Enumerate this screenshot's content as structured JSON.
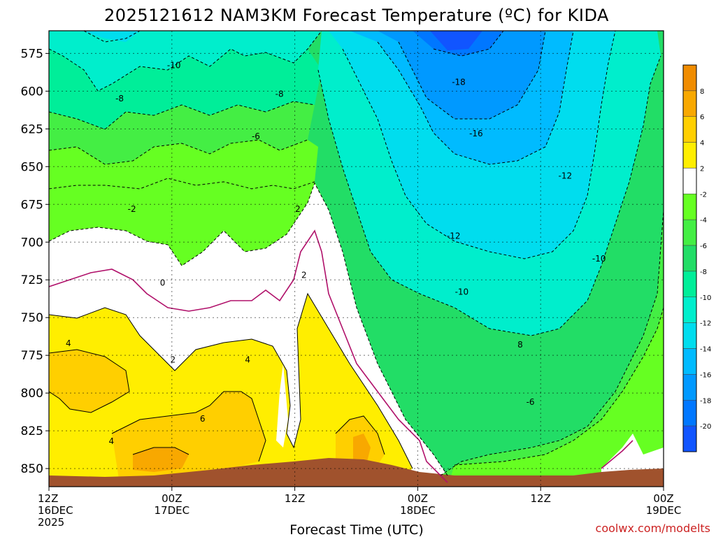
{
  "chart_data": {
    "type": "heatmap",
    "title": "2025121612 NAM3KM Forecast Temperature (ºC) for KIDA",
    "xlabel": "Forecast Time (UTC)",
    "ylabel": "",
    "credit": "coolwx.com/modelts",
    "y_axis": {
      "ticks": [
        575,
        600,
        625,
        650,
        675,
        700,
        725,
        750,
        775,
        800,
        825,
        850
      ],
      "range": [
        560,
        862
      ],
      "inverted": true
    },
    "x_axis": {
      "range": [
        0,
        60
      ],
      "ticks": [
        {
          "h": 0,
          "lines": [
            "12Z",
            "16DEC",
            "2025"
          ]
        },
        {
          "h": 12,
          "lines": [
            "00Z",
            "17DEC"
          ]
        },
        {
          "h": 24,
          "lines": [
            "12Z"
          ]
        },
        {
          "h": 36,
          "lines": [
            "00Z",
            "18DEC"
          ]
        },
        {
          "h": 48,
          "lines": [
            "12Z"
          ]
        },
        {
          "h": 60,
          "lines": [
            "00Z",
            "19DEC"
          ]
        }
      ]
    },
    "colorbar": {
      "levels": [
        {
          "label": "8",
          "color": "#f08c00"
        },
        {
          "label": "6",
          "color": "#f8a800"
        },
        {
          "label": "4",
          "color": "#ffcf00"
        },
        {
          "label": "2",
          "color": "#ffee00"
        },
        {
          "label": "-2",
          "color": "#ffffff"
        },
        {
          "label": "-4",
          "color": "#66ff22"
        },
        {
          "label": "-6",
          "color": "#44ee44"
        },
        {
          "label": "-8",
          "color": "#22dd66"
        },
        {
          "label": "-10",
          "color": "#00ee99"
        },
        {
          "label": "-12",
          "color": "#00eecc"
        },
        {
          "label": "-14",
          "color": "#00ddee"
        },
        {
          "label": "-16",
          "color": "#00bbff"
        },
        {
          "label": "-18",
          "color": "#0099ff"
        },
        {
          "label": "-20",
          "color": "#0077ff"
        },
        {
          "label": "",
          "color": "#1155ff"
        }
      ]
    },
    "contour_labels": [
      {
        "text": "-10",
        "h": 12.2,
        "p": 583
      },
      {
        "text": "-8",
        "h": 6.9,
        "p": 605
      },
      {
        "text": "-8",
        "h": 22.5,
        "p": 602
      },
      {
        "text": "-6",
        "h": 20.2,
        "p": 630
      },
      {
        "text": "-2",
        "h": 8.1,
        "p": 678
      },
      {
        "text": "2",
        "h": 24.3,
        "p": 678
      },
      {
        "text": "0",
        "h": 11.1,
        "p": 727
      },
      {
        "text": "2",
        "h": 24.9,
        "p": 722
      },
      {
        "text": "4",
        "h": 1.9,
        "p": 767
      },
      {
        "text": "2",
        "h": 12.1,
        "p": 778
      },
      {
        "text": "4",
        "h": 19.4,
        "p": 778
      },
      {
        "text": "6",
        "h": 15.0,
        "p": 817
      },
      {
        "text": "4",
        "h": 6.1,
        "p": 832
      },
      {
        "text": "-18",
        "h": 40.0,
        "p": 594
      },
      {
        "text": "-16",
        "h": 41.7,
        "p": 628
      },
      {
        "text": "-12",
        "h": 50.4,
        "p": 656
      },
      {
        "text": "-12",
        "h": 39.5,
        "p": 696
      },
      {
        "text": "-10",
        "h": 53.7,
        "p": 711
      },
      {
        "text": "-10",
        "h": 40.3,
        "p": 733
      },
      {
        "text": "8",
        "h": 46.0,
        "p": 768
      },
      {
        "text": "-6",
        "h": 47.0,
        "p": 806
      }
    ]
  }
}
